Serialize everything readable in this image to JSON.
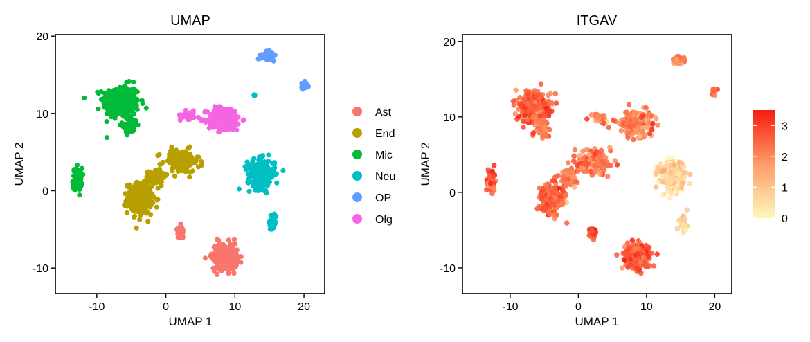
{
  "chart_data": [
    {
      "type": "scatter",
      "title": "UMAP",
      "xlabel": "UMAP 1",
      "ylabel": "UMAP 2",
      "xlim": [
        -16,
        23
      ],
      "ylim": [
        -13.3,
        20.2
      ],
      "xticks": [
        -10,
        0,
        10,
        20
      ],
      "yticks": [
        -10,
        0,
        10,
        20
      ],
      "grid": false,
      "legend_position": "right",
      "series": [
        {
          "name": "Ast",
          "color": "#F8766D"
        },
        {
          "name": "End",
          "color": "#B79F00"
        },
        {
          "name": "Mic",
          "color": "#00BA38"
        },
        {
          "name": "Neu",
          "color": "#00BFC4"
        },
        {
          "name": "OP",
          "color": "#619CFF"
        },
        {
          "name": "Olg",
          "color": "#F564E3"
        }
      ],
      "clusters": [
        {
          "series": "Mic",
          "x": -6.5,
          "y": 11.5,
          "sx": 2.4,
          "sy": 2.0,
          "n": 260
        },
        {
          "series": "Mic",
          "x": -5.2,
          "y": 8.5,
          "sx": 1.0,
          "sy": 1.0,
          "n": 60
        },
        {
          "series": "Mic",
          "x": -12.8,
          "y": 1.5,
          "sx": 0.6,
          "sy": 1.3,
          "n": 70
        },
        {
          "series": "End",
          "x": -3.8,
          "y": -1.0,
          "sx": 1.6,
          "sy": 1.8,
          "n": 300
        },
        {
          "series": "End",
          "x": 2.2,
          "y": 3.8,
          "sx": 2.4,
          "sy": 1.4,
          "n": 160
        },
        {
          "series": "End",
          "x": -1.5,
          "y": 1.8,
          "sx": 1.2,
          "sy": 1.0,
          "n": 60
        },
        {
          "series": "Olg",
          "x": 8.5,
          "y": 9.3,
          "sx": 2.2,
          "sy": 1.4,
          "n": 230
        },
        {
          "series": "Olg",
          "x": 3.2,
          "y": 9.8,
          "sx": 1.0,
          "sy": 0.5,
          "n": 50
        },
        {
          "series": "Neu",
          "x": 13.8,
          "y": 2.2,
          "sx": 1.8,
          "sy": 1.7,
          "n": 230
        },
        {
          "series": "Neu",
          "x": 15.5,
          "y": -4.0,
          "sx": 0.5,
          "sy": 1.0,
          "n": 35
        },
        {
          "series": "Neu",
          "x": 12.8,
          "y": 12.4,
          "sx": 0.15,
          "sy": 0.15,
          "n": 4
        },
        {
          "series": "OP",
          "x": 14.7,
          "y": 17.5,
          "sx": 0.8,
          "sy": 0.45,
          "n": 70
        },
        {
          "series": "OP",
          "x": 20.0,
          "y": 13.5,
          "sx": 0.4,
          "sy": 0.5,
          "n": 20
        },
        {
          "series": "Ast",
          "x": 8.5,
          "y": -8.5,
          "sx": 1.7,
          "sy": 1.6,
          "n": 220
        },
        {
          "series": "Ast",
          "x": 2.1,
          "y": -5.4,
          "sx": 0.45,
          "sy": 0.7,
          "n": 40
        }
      ]
    },
    {
      "type": "scatter",
      "title": "ITGAV",
      "xlabel": "UMAP 1",
      "ylabel": "UMAP 2",
      "xlim": [
        -17,
        22.5
      ],
      "ylim": [
        -13.4,
        20.9
      ],
      "xticks": [
        -10,
        0,
        10,
        20
      ],
      "yticks": [
        -10,
        0,
        10,
        20
      ],
      "grid": false,
      "colorbar": {
        "min": 0,
        "max": 3.5,
        "ticks": [
          0,
          1,
          2,
          3
        ],
        "low_color": "#FFF7BC",
        "mid_color": "#FD9C69",
        "high_color": "#F81B0D"
      },
      "clusters": [
        {
          "x": -6.5,
          "y": 11.5,
          "sx": 2.4,
          "sy": 2.0,
          "n": 220,
          "level": 2.6
        },
        {
          "x": -5.2,
          "y": 8.5,
          "sx": 1.0,
          "sy": 1.0,
          "n": 50,
          "level": 2.4
        },
        {
          "x": -12.8,
          "y": 1.5,
          "sx": 0.6,
          "sy": 1.3,
          "n": 60,
          "level": 2.7
        },
        {
          "x": -3.8,
          "y": -1.0,
          "sx": 1.6,
          "sy": 1.8,
          "n": 250,
          "level": 2.5
        },
        {
          "x": 2.2,
          "y": 3.8,
          "sx": 2.4,
          "sy": 1.4,
          "n": 140,
          "level": 2.3
        },
        {
          "x": -1.5,
          "y": 1.8,
          "sx": 1.2,
          "sy": 1.0,
          "n": 50,
          "level": 2.2
        },
        {
          "x": 8.5,
          "y": 9.3,
          "sx": 2.2,
          "sy": 1.4,
          "n": 200,
          "level": 2.1
        },
        {
          "x": 3.2,
          "y": 9.8,
          "sx": 1.0,
          "sy": 0.5,
          "n": 40,
          "level": 2.0
        },
        {
          "x": 13.8,
          "y": 2.2,
          "sx": 1.8,
          "sy": 1.7,
          "n": 220,
          "level": 0.6
        },
        {
          "x": 15.5,
          "y": -4.0,
          "sx": 0.5,
          "sy": 1.0,
          "n": 30,
          "level": 0.7
        },
        {
          "x": 14.7,
          "y": 17.5,
          "sx": 0.8,
          "sy": 0.45,
          "n": 60,
          "level": 2.0
        },
        {
          "x": 20.0,
          "y": 13.5,
          "sx": 0.4,
          "sy": 0.5,
          "n": 20,
          "level": 2.4
        },
        {
          "x": 8.5,
          "y": -8.5,
          "sx": 1.7,
          "sy": 1.6,
          "n": 200,
          "level": 2.7
        },
        {
          "x": 2.1,
          "y": -5.4,
          "sx": 0.45,
          "sy": 0.7,
          "n": 40,
          "level": 2.8
        }
      ]
    }
  ]
}
